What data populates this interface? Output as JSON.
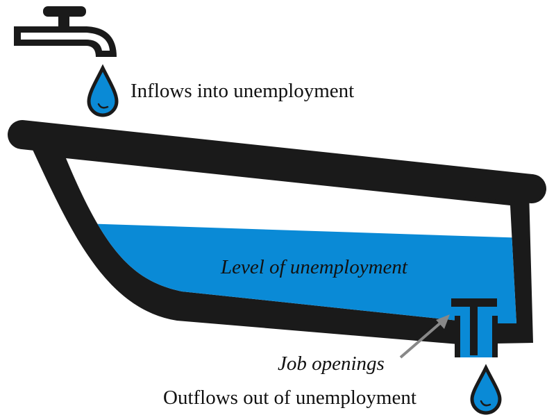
{
  "labels": {
    "inflows": "Inflows into unemployment",
    "level": "Level of unemployment",
    "job_openings": "Job openings",
    "outflows": "Outflows out of unemployment"
  }
}
